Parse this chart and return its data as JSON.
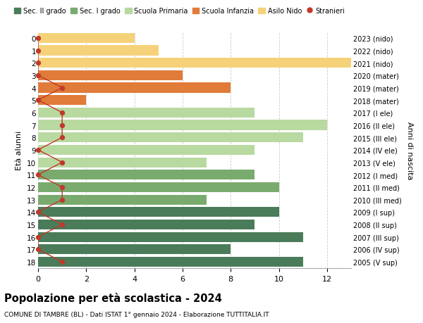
{
  "ages": [
    18,
    17,
    16,
    15,
    14,
    13,
    12,
    11,
    10,
    9,
    8,
    7,
    6,
    5,
    4,
    3,
    2,
    1,
    0
  ],
  "years": [
    "2005 (V sup)",
    "2006 (IV sup)",
    "2007 (III sup)",
    "2008 (II sup)",
    "2009 (I sup)",
    "2010 (III med)",
    "2011 (II med)",
    "2012 (I med)",
    "2013 (V ele)",
    "2014 (IV ele)",
    "2015 (III ele)",
    "2016 (II ele)",
    "2017 (I ele)",
    "2018 (mater)",
    "2019 (mater)",
    "2020 (mater)",
    "2021 (nido)",
    "2022 (nido)",
    "2023 (nido)"
  ],
  "bar_values": [
    11,
    8,
    11,
    9,
    10,
    7,
    10,
    9,
    7,
    9,
    11,
    12,
    9,
    2,
    8,
    6,
    13,
    5,
    4
  ],
  "bar_colors": [
    "#4a7c59",
    "#4a7c59",
    "#4a7c59",
    "#4a7c59",
    "#4a7c59",
    "#7aab6e",
    "#7aab6e",
    "#7aab6e",
    "#b8d9a0",
    "#b8d9a0",
    "#b8d9a0",
    "#b8d9a0",
    "#b8d9a0",
    "#e07b39",
    "#e07b39",
    "#e07b39",
    "#f5d27a",
    "#f5d27a",
    "#f5d27a"
  ],
  "stranieri_values": [
    1,
    0,
    0,
    1,
    0,
    1,
    1,
    0,
    1,
    0,
    1,
    1,
    1,
    0,
    1,
    0,
    0,
    0,
    0
  ],
  "stranieri_color": "#c0392b",
  "legend_labels": [
    "Sec. II grado",
    "Sec. I grado",
    "Scuola Primaria",
    "Scuola Infanzia",
    "Asilo Nido",
    "Stranieri"
  ],
  "legend_colors": [
    "#4a7c59",
    "#7aab6e",
    "#b8d9a0",
    "#e07b39",
    "#f5d27a",
    "#c0392b"
  ],
  "title": "Popolazione per età scolastica - 2024",
  "subtitle": "COMUNE DI TAMBRE (BL) - Dati ISTAT 1° gennaio 2024 - Elaborazione TUTTITALIA.IT",
  "ylabel_left": "Età alunni",
  "ylabel_right": "Anni di nascita",
  "xlim": [
    0,
    13
  ],
  "background_color": "#ffffff",
  "grid_color": "#cccccc"
}
